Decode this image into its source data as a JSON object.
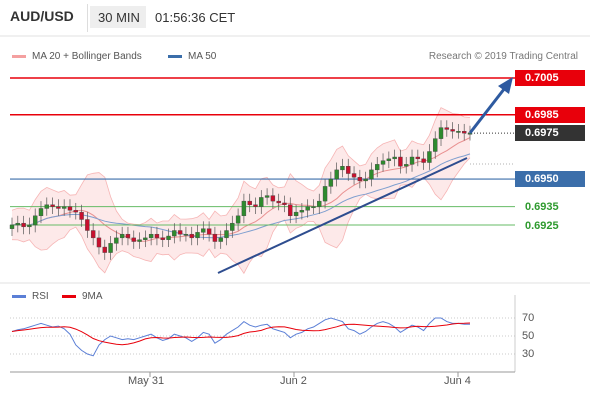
{
  "header": {
    "pair": "AUD/USD",
    "timeframe": "30 MIN",
    "time": "01:56:36 CET"
  },
  "legend": {
    "bollinger": "MA 20 + Bollinger Bands",
    "ma50": "MA 50",
    "research": "Research © 2019 Trading Central",
    "rsi": "RSI",
    "rsi_ma": "9MA"
  },
  "colors": {
    "resistance": "#e8000b",
    "pivot": "#3b6eaa",
    "support": "#66bb66",
    "current": "#333333",
    "bollinger": "#f08080",
    "arrow": "#2e5aa0",
    "rsi": "#5b7fd6",
    "rsi_ma": "#e8000b"
  },
  "price_levels": [
    {
      "label": "0.7005",
      "value": 0.7005,
      "kind": "resistance"
    },
    {
      "label": "0.6985",
      "value": 0.6985,
      "kind": "resistance"
    },
    {
      "label": "0.6975",
      "value": 0.6975,
      "kind": "current"
    },
    {
      "label": "0.6950",
      "value": 0.695,
      "kind": "pivot"
    },
    {
      "label": "0.6935",
      "value": 0.6935,
      "kind": "support"
    },
    {
      "label": "0.6925",
      "value": 0.6925,
      "kind": "support"
    }
  ],
  "x_labels": [
    "May 31",
    "Jun 2",
    "Jun 4"
  ],
  "rsi_ticks": [
    "70",
    "50",
    "30"
  ],
  "chart_data": {
    "type": "candlestick",
    "series": [
      {
        "name": "MA 20 + Bollinger Bands"
      },
      {
        "name": "MA 50"
      },
      {
        "name": "RSI"
      },
      {
        "name": "9MA"
      }
    ],
    "price_close": [
      0.6925,
      0.6926,
      0.6924,
      0.6925,
      0.693,
      0.6934,
      0.6936,
      0.6935,
      0.6934,
      0.6935,
      0.6933,
      0.6932,
      0.6928,
      0.6922,
      0.6918,
      0.6913,
      0.691,
      0.6915,
      0.6918,
      0.692,
      0.6918,
      0.6916,
      0.6917,
      0.6918,
      0.692,
      0.6918,
      0.6917,
      0.6919,
      0.6922,
      0.692,
      0.692,
      0.6918,
      0.6921,
      0.6923,
      0.692,
      0.6916,
      0.6918,
      0.6922,
      0.6926,
      0.693,
      0.6938,
      0.6936,
      0.6935,
      0.694,
      0.6941,
      0.6938,
      0.6937,
      0.6936,
      0.693,
      0.6932,
      0.6933,
      0.6935,
      0.6935,
      0.6938,
      0.6946,
      0.695,
      0.6955,
      0.6957,
      0.6953,
      0.6951,
      0.6949,
      0.695,
      0.6955,
      0.6958,
      0.696,
      0.6961,
      0.6962,
      0.6957,
      0.6958,
      0.6962,
      0.6961,
      0.6959,
      0.6965,
      0.6972,
      0.6978,
      0.6977,
      0.6976,
      0.6976,
      0.6975,
      0.6975
    ],
    "rsi": [
      55,
      57,
      58,
      60,
      62,
      64,
      62,
      60,
      61,
      58,
      52,
      40,
      34,
      30,
      28,
      40,
      46,
      50,
      48,
      46,
      47,
      46,
      48,
      50,
      52,
      48,
      45,
      47,
      52,
      50,
      48,
      44,
      48,
      54,
      52,
      42,
      46,
      52,
      56,
      60,
      66,
      62,
      60,
      62,
      63,
      58,
      56,
      54,
      48,
      52,
      54,
      58,
      60,
      64,
      68,
      70,
      68,
      66,
      58,
      56,
      52,
      55,
      60,
      64,
      66,
      64,
      60,
      54,
      58,
      62,
      60,
      56,
      64,
      70,
      70,
      66,
      64,
      64,
      63,
      63
    ],
    "rsi_ticks": [
      70,
      50,
      30
    ],
    "levels": [
      0.7005,
      0.6985,
      0.6975,
      0.695,
      0.6935,
      0.6925
    ],
    "x_labels": [
      "May 31",
      "Jun 2",
      "Jun 4"
    ]
  }
}
